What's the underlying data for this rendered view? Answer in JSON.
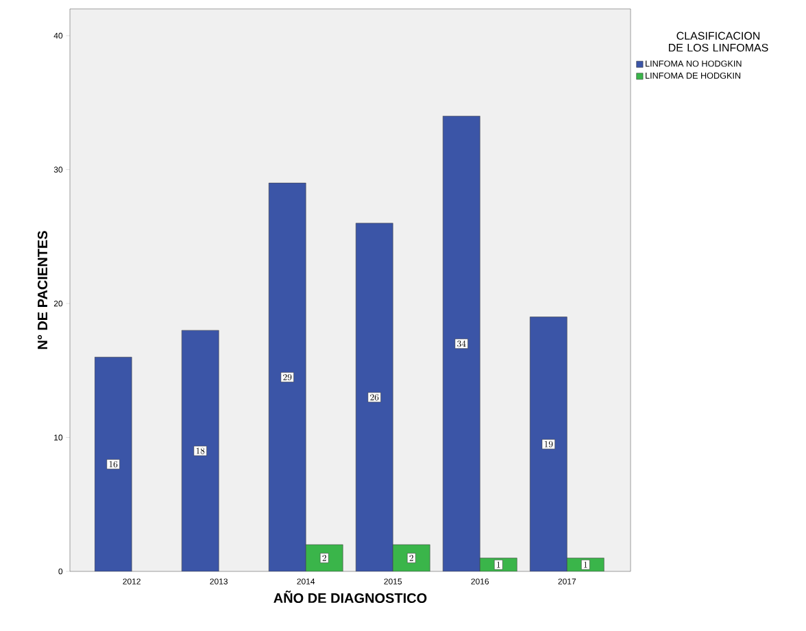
{
  "chart_data": {
    "type": "bar",
    "xlabel": "AÑO DE DIAGNOSTICO",
    "ylabel": "N° DE PACIENTES",
    "legend_title": "CLASIFICACION DE LOS LINFOMAS",
    "categories": [
      "2012",
      "2013",
      "2014",
      "2015",
      "2016",
      "2017"
    ],
    "series": [
      {
        "name": "LINFOMA NO HODGKIN",
        "color": "#3b55a7",
        "values": [
          16,
          18,
          29,
          26,
          34,
          19
        ]
      },
      {
        "name": "LINFOMA DE HODGKIN",
        "color": "#3ab54a",
        "values": [
          null,
          null,
          2,
          2,
          1,
          1
        ]
      }
    ],
    "ylim": [
      0,
      42
    ],
    "yticks": [
      0,
      10,
      20,
      30,
      40
    ],
    "data_labels": true,
    "legend": "top right",
    "grid": false
  }
}
